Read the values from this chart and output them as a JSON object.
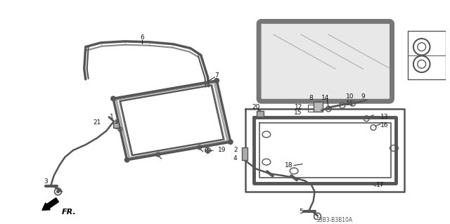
{
  "bg_color": "#ffffff",
  "fig_width": 6.4,
  "fig_height": 3.19,
  "dpi": 100,
  "lc": "#555555",
  "lw": 1.0,
  "tc": "#111111",
  "fs": 6.5,
  "diagram_code": "S3B3-B3B10A"
}
